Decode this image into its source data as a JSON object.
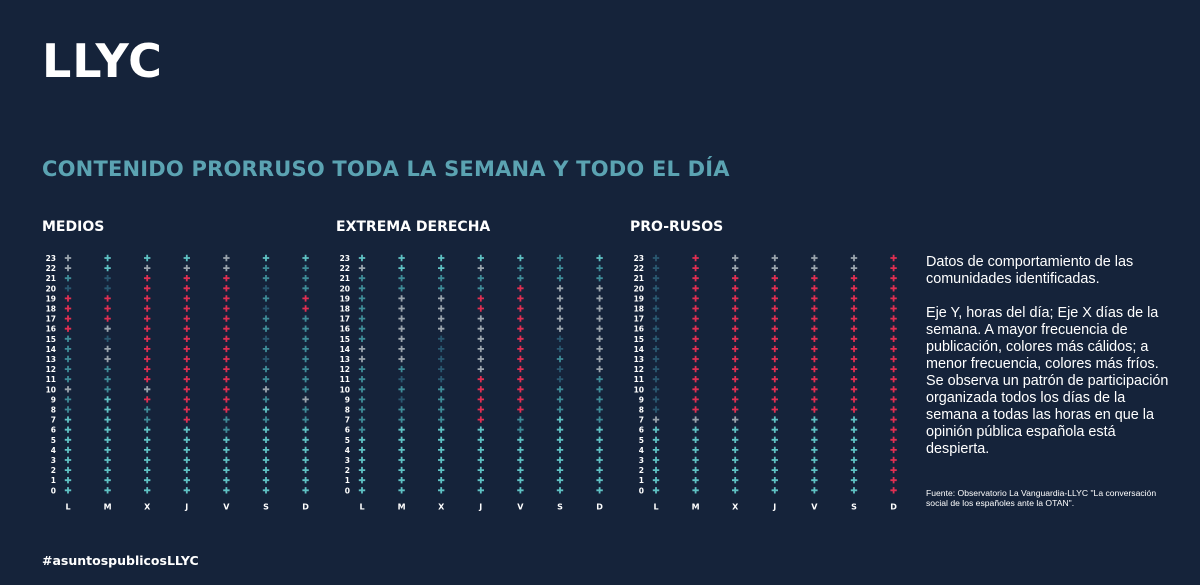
{
  "logo": "LLYC",
  "title": "CONTENIDO PRORRUSO TODA LA SEMANA Y TODO EL DÍA",
  "hashtag": "#asuntospublicosLLYC",
  "description": [
    "Datos de comportamiento de las comunidades identificadas.",
    "Eje Y, horas del día; Eje X días de la semana. A mayor frecuencia de publicación, colores más cálidos; a menor frecuencia, colores más fríos. Se observa un patrón de participación organizada todos los días de la semana a todas las horas en que la opinión pública española está despierta."
  ],
  "source": "Fuente: Observatorio La Vanguardia-LLYC \"La conversación social de los españoles ante la OTAN\".",
  "colors": {
    "background": "#15233a",
    "title": "#5ba3b2",
    "scale": [
      "#1e3a52",
      "#2a5870",
      "#3f8c98",
      "#5fc2c4",
      "#9aa4ad",
      "#e02f52"
    ]
  },
  "chart_data": {
    "type": "heatmap",
    "encoding": "publication frequency level per hour and weekday (0 = very low/cold, 5 = very high/warm)",
    "x_labels": [
      "L",
      "M",
      "X",
      "J",
      "V",
      "S",
      "D"
    ],
    "y_labels": [
      "0",
      "1",
      "2",
      "3",
      "4",
      "5",
      "6",
      "7",
      "8",
      "9",
      "10",
      "11",
      "12",
      "13",
      "14",
      "15",
      "16",
      "17",
      "18",
      "19",
      "20",
      "21",
      "22",
      "23"
    ],
    "panels": [
      {
        "name": "MEDIOS",
        "values": [
          [
            3,
            3,
            3,
            3,
            3,
            3,
            3
          ],
          [
            3,
            3,
            3,
            3,
            3,
            3,
            3
          ],
          [
            3,
            3,
            3,
            3,
            3,
            3,
            3
          ],
          [
            3,
            3,
            3,
            3,
            3,
            3,
            3
          ],
          [
            3,
            3,
            3,
            3,
            3,
            3,
            3
          ],
          [
            3,
            3,
            3,
            3,
            3,
            3,
            3
          ],
          [
            3,
            3,
            3,
            3,
            2,
            3,
            3
          ],
          [
            3,
            3,
            2,
            5,
            2,
            2,
            2
          ],
          [
            2,
            3,
            2,
            5,
            5,
            3,
            2
          ],
          [
            2,
            3,
            5,
            5,
            5,
            2,
            4
          ],
          [
            4,
            2,
            4,
            5,
            5,
            4,
            2
          ],
          [
            2,
            2,
            5,
            5,
            5,
            2,
            2
          ],
          [
            2,
            2,
            5,
            5,
            5,
            2,
            2
          ],
          [
            2,
            4,
            5,
            5,
            5,
            1,
            2
          ],
          [
            2,
            4,
            5,
            5,
            5,
            2,
            2
          ],
          [
            2,
            1,
            5,
            5,
            5,
            1,
            2
          ],
          [
            5,
            4,
            5,
            5,
            5,
            2,
            2
          ],
          [
            5,
            5,
            5,
            5,
            5,
            2,
            2
          ],
          [
            5,
            5,
            5,
            5,
            5,
            1,
            5
          ],
          [
            5,
            5,
            5,
            5,
            5,
            2,
            5
          ],
          [
            1,
            1,
            5,
            5,
            5,
            1,
            2
          ],
          [
            2,
            1,
            5,
            5,
            5,
            2,
            2
          ],
          [
            4,
            3,
            4,
            4,
            4,
            2,
            2
          ],
          [
            4,
            3,
            3,
            3,
            4,
            3,
            3
          ]
        ]
      },
      {
        "name": "EXTREMA DERECHA",
        "values": [
          [
            3,
            3,
            3,
            3,
            3,
            3,
            3
          ],
          [
            3,
            3,
            3,
            3,
            3,
            3,
            3
          ],
          [
            3,
            3,
            3,
            3,
            3,
            3,
            3
          ],
          [
            3,
            3,
            3,
            3,
            3,
            3,
            3
          ],
          [
            3,
            3,
            3,
            3,
            3,
            3,
            3
          ],
          [
            3,
            3,
            3,
            3,
            3,
            3,
            3
          ],
          [
            2,
            3,
            3,
            3,
            2,
            3,
            3
          ],
          [
            2,
            2,
            2,
            5,
            2,
            3,
            2
          ],
          [
            2,
            2,
            2,
            5,
            5,
            2,
            2
          ],
          [
            2,
            1,
            2,
            5,
            5,
            2,
            2
          ],
          [
            2,
            2,
            2,
            5,
            5,
            2,
            2
          ],
          [
            2,
            1,
            1,
            5,
            5,
            1,
            2
          ],
          [
            2,
            2,
            1,
            4,
            5,
            1,
            4
          ],
          [
            4,
            4,
            1,
            4,
            5,
            2,
            4
          ],
          [
            4,
            4,
            1,
            4,
            5,
            1,
            4
          ],
          [
            2,
            4,
            1,
            4,
            5,
            1,
            4
          ],
          [
            2,
            4,
            4,
            4,
            5,
            4,
            4
          ],
          [
            2,
            4,
            4,
            4,
            5,
            4,
            4
          ],
          [
            2,
            4,
            4,
            5,
            5,
            4,
            4
          ],
          [
            2,
            4,
            4,
            5,
            5,
            4,
            4
          ],
          [
            2,
            2,
            2,
            2,
            5,
            4,
            4
          ],
          [
            2,
            2,
            2,
            2,
            2,
            2,
            2
          ],
          [
            4,
            3,
            3,
            4,
            2,
            2,
            2
          ],
          [
            3,
            3,
            3,
            3,
            3,
            2,
            3
          ]
        ]
      },
      {
        "name": "PRO-RUSOS",
        "values": [
          [
            3,
            3,
            3,
            3,
            3,
            3,
            5
          ],
          [
            3,
            3,
            3,
            3,
            3,
            3,
            5
          ],
          [
            3,
            3,
            3,
            3,
            3,
            3,
            5
          ],
          [
            3,
            3,
            3,
            3,
            3,
            3,
            5
          ],
          [
            3,
            3,
            3,
            3,
            3,
            3,
            5
          ],
          [
            3,
            3,
            3,
            3,
            3,
            3,
            5
          ],
          [
            3,
            3,
            3,
            3,
            3,
            3,
            5
          ],
          [
            4,
            4,
            4,
            3,
            3,
            3,
            5
          ],
          [
            1,
            5,
            5,
            5,
            5,
            5,
            5
          ],
          [
            1,
            5,
            5,
            5,
            5,
            5,
            5
          ],
          [
            1,
            5,
            5,
            5,
            5,
            5,
            5
          ],
          [
            1,
            5,
            5,
            5,
            5,
            5,
            5
          ],
          [
            1,
            5,
            5,
            5,
            5,
            5,
            5
          ],
          [
            1,
            5,
            5,
            5,
            5,
            5,
            5
          ],
          [
            1,
            5,
            5,
            5,
            5,
            5,
            5
          ],
          [
            1,
            5,
            5,
            5,
            5,
            5,
            5
          ],
          [
            1,
            5,
            5,
            5,
            5,
            5,
            5
          ],
          [
            1,
            5,
            5,
            5,
            5,
            5,
            5
          ],
          [
            1,
            5,
            5,
            5,
            5,
            5,
            5
          ],
          [
            1,
            5,
            5,
            5,
            5,
            5,
            5
          ],
          [
            1,
            5,
            5,
            5,
            5,
            5,
            5
          ],
          [
            1,
            5,
            5,
            5,
            5,
            5,
            5
          ],
          [
            1,
            5,
            4,
            4,
            4,
            4,
            5
          ],
          [
            1,
            5,
            4,
            4,
            4,
            4,
            5
          ]
        ]
      }
    ]
  }
}
